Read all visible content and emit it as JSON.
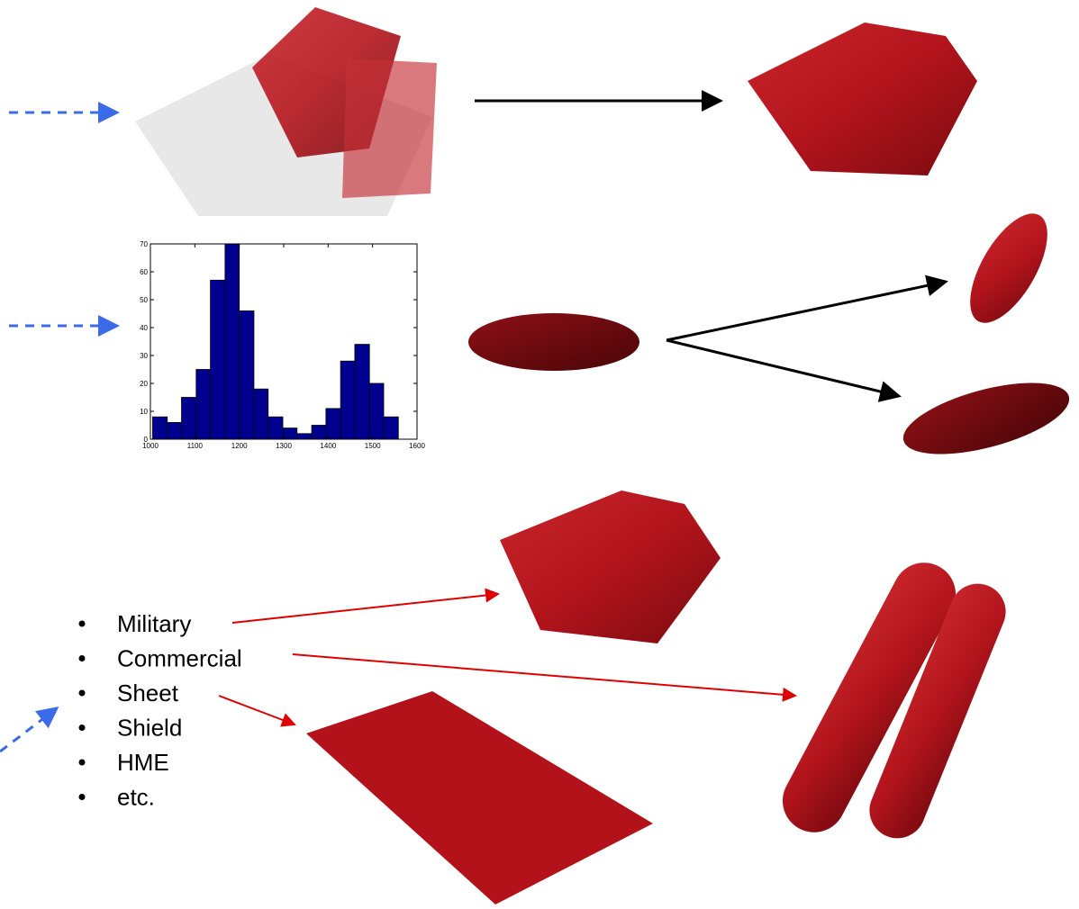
{
  "chart_data": {
    "type": "histogram",
    "bins": [
      1005,
      1038,
      1070,
      1103,
      1135,
      1168,
      1200,
      1233,
      1265,
      1298,
      1330,
      1363,
      1395,
      1428,
      1460,
      1493,
      1525,
      1558
    ],
    "values": [
      8,
      6,
      15,
      25,
      57,
      70,
      46,
      18,
      8,
      4,
      2,
      5,
      11,
      28,
      34,
      20,
      8
    ],
    "color": "#00008f",
    "xlim": [
      1000,
      1600
    ],
    "xticks": [
      1000,
      1100,
      1200,
      1300,
      1400,
      1500,
      1600
    ],
    "ylim": [
      0,
      70
    ],
    "yticks": [
      0,
      10,
      20,
      30,
      40,
      50,
      60,
      70
    ]
  },
  "list": {
    "items": [
      "Military",
      "Commercial",
      "Sheet",
      "Shield",
      "HME",
      "etc."
    ]
  }
}
